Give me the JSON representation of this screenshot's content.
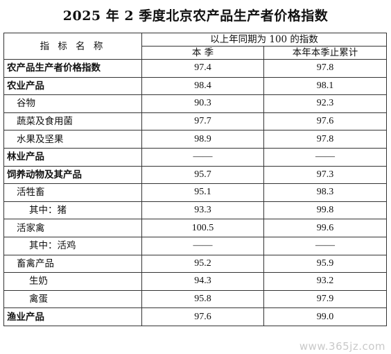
{
  "title": "2025 年 2 季度北京农产品生产者价格指数",
  "header": {
    "indicator": "指 标 名 称",
    "group": "以上年同期为 100 的指数",
    "col1": "本  季",
    "col2": "本年本季止累计"
  },
  "rows": [
    {
      "name": "农产品生产者价格指数",
      "level": 0,
      "q": "97.4",
      "ytd": "97.8"
    },
    {
      "name": "农业产品",
      "level": 0,
      "q": "98.4",
      "ytd": "98.1"
    },
    {
      "name": "谷物",
      "level": 1,
      "q": "90.3",
      "ytd": "92.3"
    },
    {
      "name": "蔬菜及食用菌",
      "level": 1,
      "q": "97.7",
      "ytd": "97.6"
    },
    {
      "name": "水果及坚果",
      "level": 1,
      "q": "98.9",
      "ytd": "97.8"
    },
    {
      "name": "林业产品",
      "level": 0,
      "q": "——",
      "ytd": "——"
    },
    {
      "name": "饲养动物及其产品",
      "level": 0,
      "q": "95.7",
      "ytd": "97.3"
    },
    {
      "name": "活牲畜",
      "level": 1,
      "q": "95.1",
      "ytd": "98.3"
    },
    {
      "name": "其中：猪",
      "level": 2,
      "q": "93.3",
      "ytd": "99.8"
    },
    {
      "name": "活家禽",
      "level": 1,
      "q": "100.5",
      "ytd": "99.6"
    },
    {
      "name": "其中：活鸡",
      "level": 2,
      "q": "——",
      "ytd": "——"
    },
    {
      "name": "畜禽产品",
      "level": 1,
      "q": "95.2",
      "ytd": "95.9"
    },
    {
      "name": "生奶",
      "level": 2,
      "q": "94.3",
      "ytd": "93.2"
    },
    {
      "name": "禽蛋",
      "level": 2,
      "q": "95.8",
      "ytd": "97.9"
    },
    {
      "name": "渔业产品",
      "level": 0,
      "q": "97.6",
      "ytd": "99.0"
    }
  ],
  "watermark": "www.365jz.com"
}
